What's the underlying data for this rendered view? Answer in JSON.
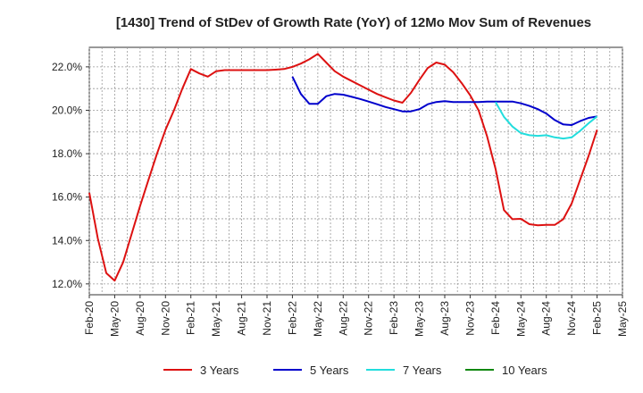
{
  "chart_data": {
    "type": "line",
    "title": "[1430]  Trend of StDev of Growth Rate (YoY) of 12Mo Mov Sum of Revenues",
    "xlabel": "",
    "ylabel": "",
    "ylim": [
      11.5,
      22.9
    ],
    "y_ticks": [
      12,
      14,
      16,
      18,
      20,
      22
    ],
    "y_tick_labels": [
      "12.0%",
      "14.0%",
      "16.0%",
      "18.0%",
      "20.0%",
      "22.0%"
    ],
    "x_tick_labels": [
      "Feb-20",
      "May-20",
      "Aug-20",
      "Nov-20",
      "Feb-21",
      "May-21",
      "Aug-21",
      "Nov-21",
      "Feb-22",
      "May-22",
      "Aug-22",
      "Nov-22",
      "Feb-23",
      "May-23",
      "Aug-23",
      "Nov-23",
      "Feb-24",
      "May-24",
      "Aug-24",
      "Nov-24",
      "Feb-25",
      "May-25"
    ],
    "x_start": "Feb-20",
    "x_unit": "months since Feb-20",
    "xlim": [
      0,
      63
    ],
    "grid": true,
    "legend_position": "bottom",
    "series": [
      {
        "name": "3 Years",
        "color": "#dd1111",
        "x": [
          0,
          1,
          2,
          3,
          4,
          5,
          6,
          7,
          8,
          9,
          10,
          11,
          12,
          13,
          14,
          15,
          16,
          17,
          18,
          19,
          20,
          21,
          22,
          23,
          24,
          25,
          26,
          27,
          28,
          29,
          30,
          31,
          32,
          33,
          34,
          35,
          36,
          37,
          38,
          39,
          40,
          41,
          42,
          43,
          44,
          45,
          46,
          47,
          48,
          49,
          50,
          51,
          52,
          53,
          54,
          55,
          56,
          57,
          58,
          59,
          60
        ],
        "values": [
          16.2,
          14.1,
          12.5,
          12.15,
          13.0,
          14.3,
          15.6,
          16.8,
          18.0,
          19.1,
          20.0,
          21.0,
          21.9,
          21.7,
          21.55,
          21.8,
          21.85,
          21.85,
          21.85,
          21.85,
          21.85,
          21.85,
          21.87,
          21.9,
          22.0,
          22.15,
          22.35,
          22.6,
          22.2,
          21.8,
          21.55,
          21.35,
          21.15,
          20.95,
          20.75,
          20.6,
          20.45,
          20.35,
          20.8,
          21.4,
          21.95,
          22.2,
          22.1,
          21.75,
          21.25,
          20.7,
          20.0,
          18.8,
          17.3,
          15.4,
          14.98,
          15.0,
          14.75,
          14.7,
          14.72,
          14.72,
          14.98,
          15.7,
          16.8,
          17.9,
          19.1
        ]
      },
      {
        "name": "5 Years",
        "color": "#0000cc",
        "x": [
          24,
          25,
          26,
          27,
          28,
          29,
          30,
          31,
          32,
          33,
          34,
          35,
          36,
          37,
          38,
          39,
          40,
          41,
          42,
          43,
          44,
          45,
          46,
          47,
          48,
          49,
          50,
          51,
          52,
          53,
          54,
          55,
          56,
          57,
          58,
          59,
          60
        ],
        "values": [
          21.55,
          20.75,
          20.3,
          20.3,
          20.65,
          20.75,
          20.72,
          20.62,
          20.52,
          20.4,
          20.28,
          20.15,
          20.05,
          19.95,
          19.95,
          20.05,
          20.28,
          20.38,
          20.42,
          20.38,
          20.38,
          20.38,
          20.38,
          20.4,
          20.4,
          20.4,
          20.4,
          20.32,
          20.2,
          20.05,
          19.85,
          19.55,
          19.35,
          19.32,
          19.5,
          19.65,
          19.72
        ]
      },
      {
        "name": "7 Years",
        "color": "#22dddd",
        "x": [
          48,
          49,
          50,
          51,
          52,
          53,
          54,
          55,
          56,
          57,
          58,
          59,
          60
        ],
        "values": [
          20.38,
          19.7,
          19.25,
          18.95,
          18.85,
          18.82,
          18.85,
          18.75,
          18.7,
          18.75,
          19.05,
          19.4,
          19.72
        ]
      },
      {
        "name": "10 Years",
        "color": "#118811",
        "x": [],
        "values": []
      }
    ]
  }
}
